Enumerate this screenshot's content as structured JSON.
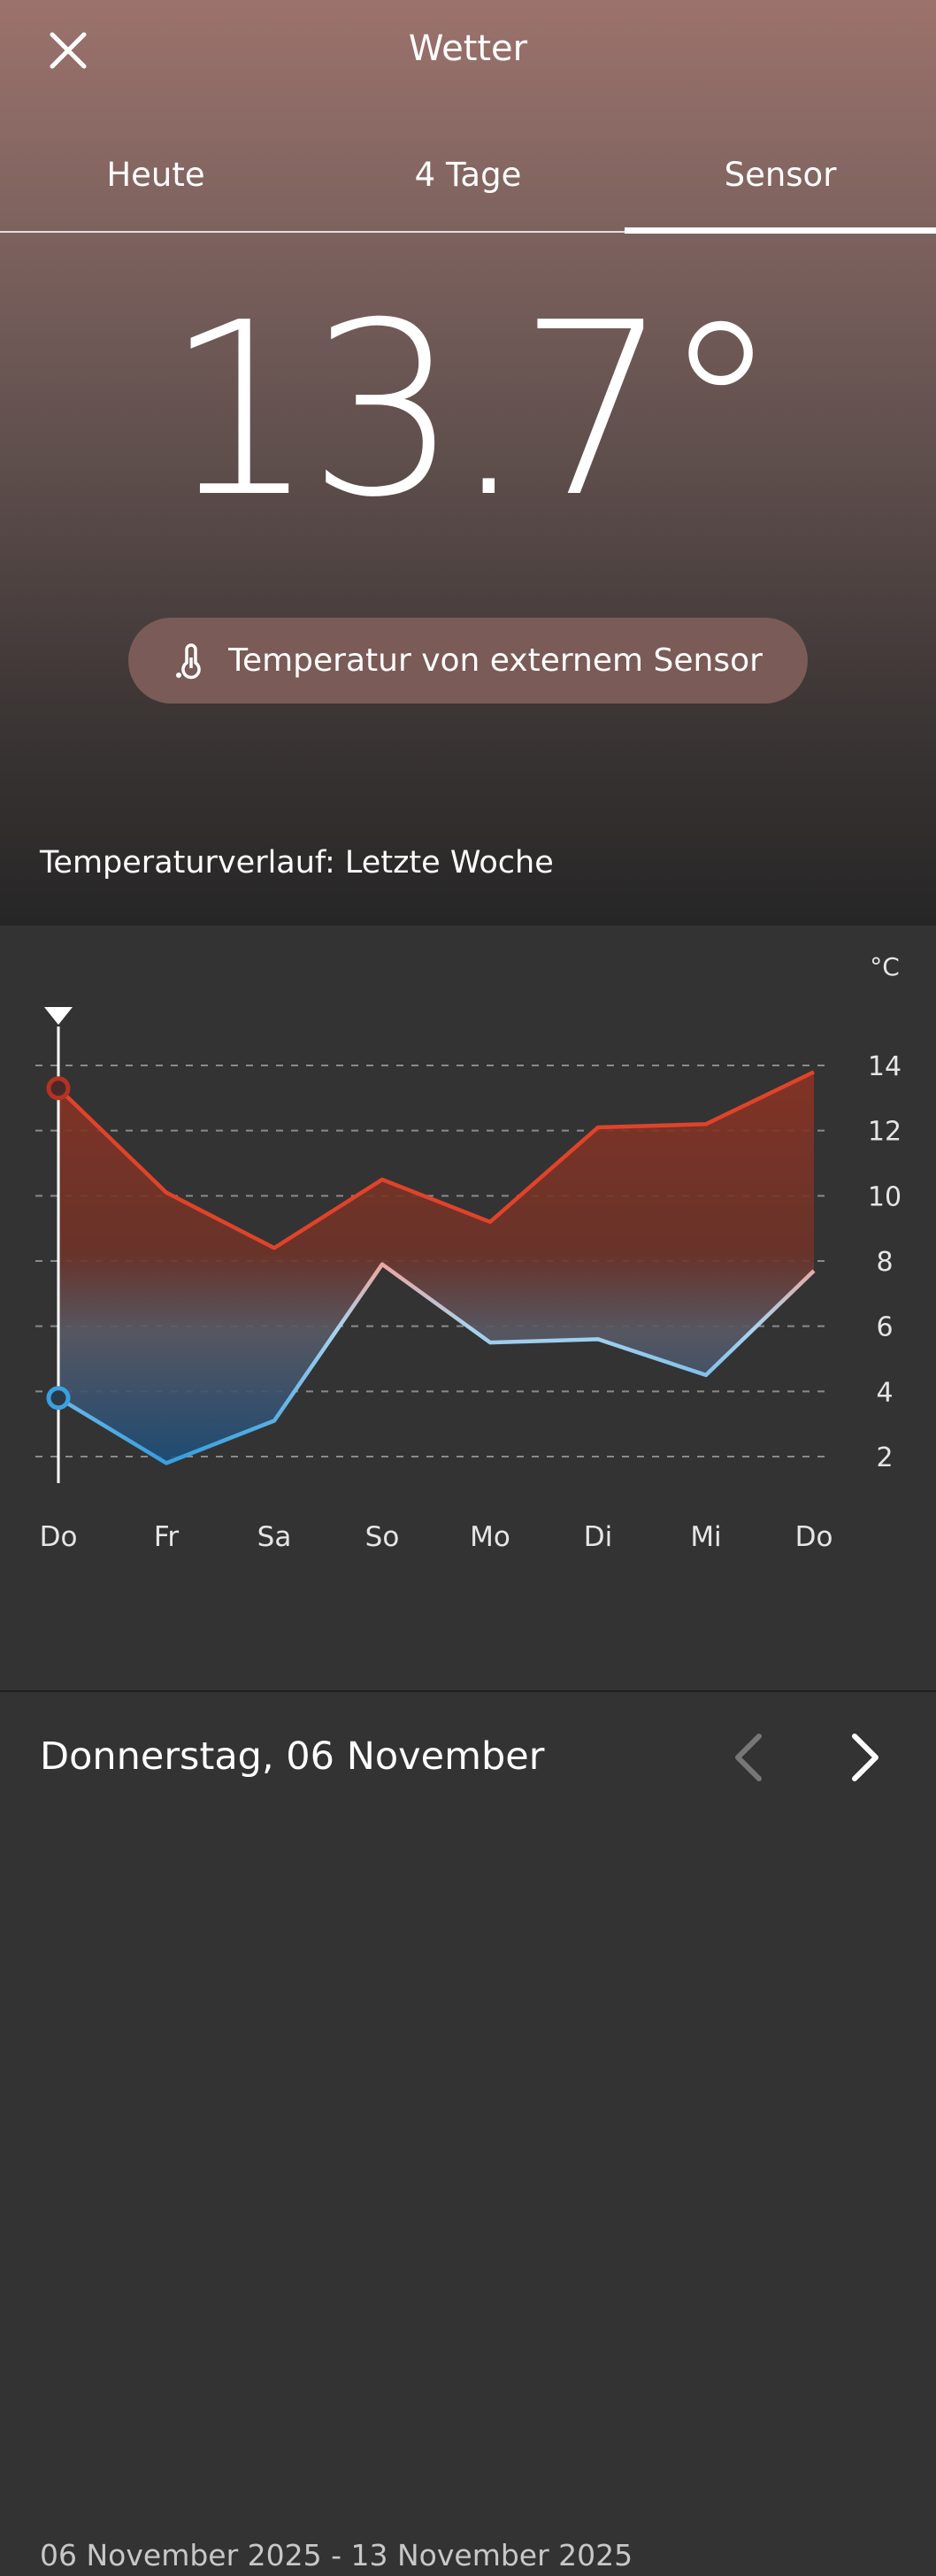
{
  "header": {
    "title": "Wetter"
  },
  "tabs": [
    {
      "label": "Heute"
    },
    {
      "label": "4 Tage"
    },
    {
      "label": "Sensor"
    }
  ],
  "current": {
    "temperature": "13.7°",
    "source_label": "Temperatur von externem Sensor"
  },
  "history": {
    "title": "Temperaturverlauf: Letzte Woche",
    "date_range": "06 November 2025 - 13 November 2025"
  },
  "footer": {
    "day_label": "Donnerstag, 06 November"
  },
  "colors": {
    "max_line": "#e0432a",
    "min_line": "#3aa0e0",
    "background_top": "#9c726c",
    "background_chart": "#333333"
  },
  "icons": [
    "close-icon",
    "thermometer-icon",
    "chevron-left-icon",
    "chevron-right-icon"
  ],
  "chart_data": {
    "type": "area",
    "unit_label": "°C",
    "categories": [
      "Do",
      "Fr",
      "Sa",
      "So",
      "Mo",
      "Di",
      "Mi",
      "Do"
    ],
    "series": [
      {
        "name": "",
        "values": [
          13.3,
          10.1,
          8.4,
          10.5,
          9.2,
          12.1,
          12.2,
          13.8
        ]
      },
      {
        "name": "",
        "values": [
          3.8,
          1.8,
          3.1,
          7.9,
          5.5,
          5.6,
          4.5,
          7.7
        ]
      }
    ],
    "yticks": [
      2,
      4,
      6,
      8,
      10,
      12,
      14
    ],
    "ylim": [
      2,
      14
    ],
    "grid": true,
    "selected_index": 0
  }
}
